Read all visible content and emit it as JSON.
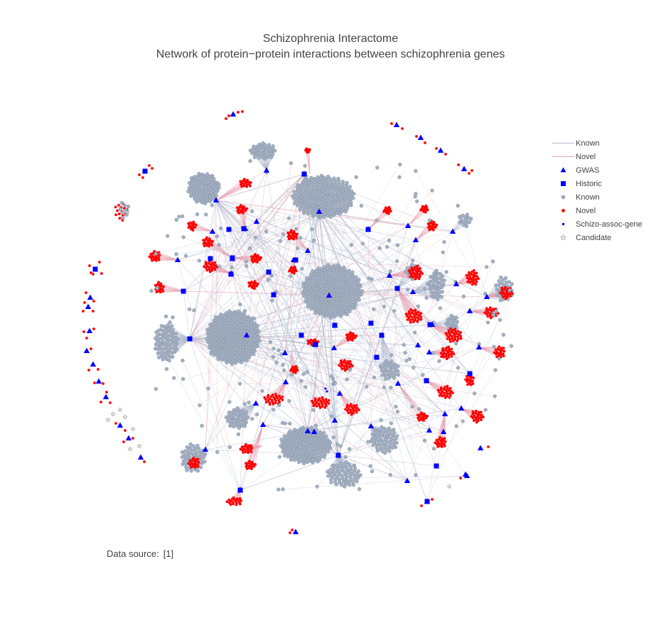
{
  "header": {
    "title": "Schizophrenia Interactome",
    "subtitle": "Network of protein−protein interactions between schizophrenia genes"
  },
  "legend": [
    {
      "label": "Known",
      "kind": "line",
      "color": "#b0bccf"
    },
    {
      "label": "Novel",
      "kind": "line",
      "color": "#e8a0b0"
    },
    {
      "label": "GWAS",
      "kind": "triangle",
      "color": "#0000ff"
    },
    {
      "label": "Historic",
      "kind": "square",
      "color": "#0000ff"
    },
    {
      "label": "Known",
      "kind": "circle",
      "color": "#a3b0c2"
    },
    {
      "label": "Novel",
      "kind": "circle",
      "color": "#ff0000"
    },
    {
      "label": "Schizo-assoc-gene",
      "kind": "dot",
      "color": "#0000ff"
    },
    {
      "label": "Candidate",
      "kind": "star",
      "color": "#a0a0a0"
    }
  ],
  "footer": {
    "source_label": "Data source:",
    "source_ref": "[1]"
  },
  "colors": {
    "gwas": "#0000ff",
    "historic": "#0000ff",
    "known_node": "#a3b0c2",
    "known_node_border": "#7f8ea3",
    "novel_node": "#ff0000",
    "candidate": "#a0a0a0",
    "known_edge": "#b0bccf",
    "novel_edge": "#e8a0b0"
  }
}
